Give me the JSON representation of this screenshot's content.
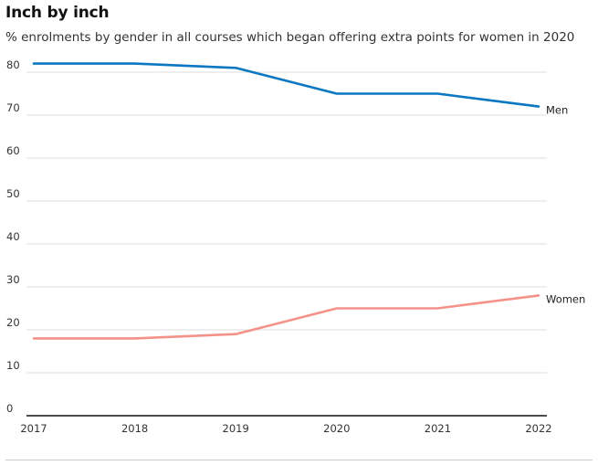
{
  "chart_data": {
    "type": "line",
    "title": "Inch by inch",
    "subtitle": "% enrolments by gender in all courses which began offering extra points for women in 2020",
    "xlabel": "",
    "ylabel": "",
    "x": [
      "2017",
      "2018",
      "2019",
      "2020",
      "2021",
      "2022"
    ],
    "ylim": [
      0,
      80
    ],
    "yticks": [
      0,
      10,
      20,
      30,
      40,
      50,
      60,
      70,
      80
    ],
    "grid": true,
    "legend": "direct labels at line ends (right)",
    "series": [
      {
        "name": "Men",
        "values": [
          82,
          82,
          81,
          75,
          75,
          72
        ],
        "color": "#0a77c2"
      },
      {
        "name": "Women",
        "values": [
          18,
          18,
          19,
          25,
          25,
          28
        ],
        "color": "#f4928a"
      }
    ]
  }
}
